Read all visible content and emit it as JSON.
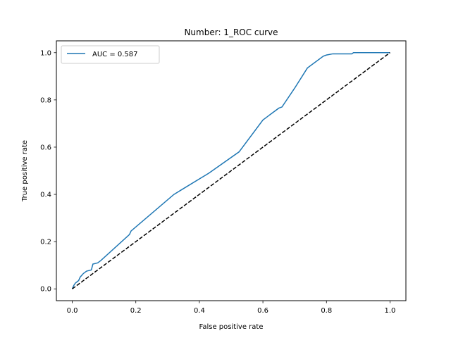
{
  "chart_data": {
    "type": "line",
    "title": "Number: 1_ROC curve",
    "xlabel": "False positive rate",
    "ylabel": "True positive rate",
    "xlim": [
      -0.05,
      1.05
    ],
    "ylim": [
      -0.05,
      1.05
    ],
    "xticks": [
      "0.0",
      "0.2",
      "0.4",
      "0.6",
      "0.8",
      "1.0"
    ],
    "yticks": [
      "0.0",
      "0.2",
      "0.4",
      "0.6",
      "0.8",
      "1.0"
    ],
    "grid": false,
    "legend": {
      "position": "top-left",
      "entries": [
        "AUC = 0.587"
      ]
    },
    "series": [
      {
        "name": "AUC = 0.587",
        "color": "#1f77b4",
        "style": "solid",
        "x": [
          0.0,
          0.005,
          0.01,
          0.02,
          0.025,
          0.035,
          0.045,
          0.06,
          0.065,
          0.08,
          0.09,
          0.18,
          0.185,
          0.32,
          0.43,
          0.525,
          0.6,
          0.65,
          0.66,
          0.7,
          0.74,
          0.79,
          0.8,
          0.82,
          0.88,
          0.885,
          0.89,
          1.0
        ],
        "y": [
          0.0,
          0.015,
          0.025,
          0.035,
          0.05,
          0.065,
          0.075,
          0.08,
          0.105,
          0.11,
          0.12,
          0.23,
          0.245,
          0.4,
          0.49,
          0.58,
          0.715,
          0.765,
          0.77,
          0.85,
          0.935,
          0.985,
          0.99,
          0.995,
          0.995,
          1.0,
          1.0,
          1.0
        ]
      },
      {
        "color": "#000000",
        "style": "dashed",
        "x": [
          0.0,
          1.0
        ],
        "y": [
          0.0,
          1.0
        ]
      }
    ]
  }
}
